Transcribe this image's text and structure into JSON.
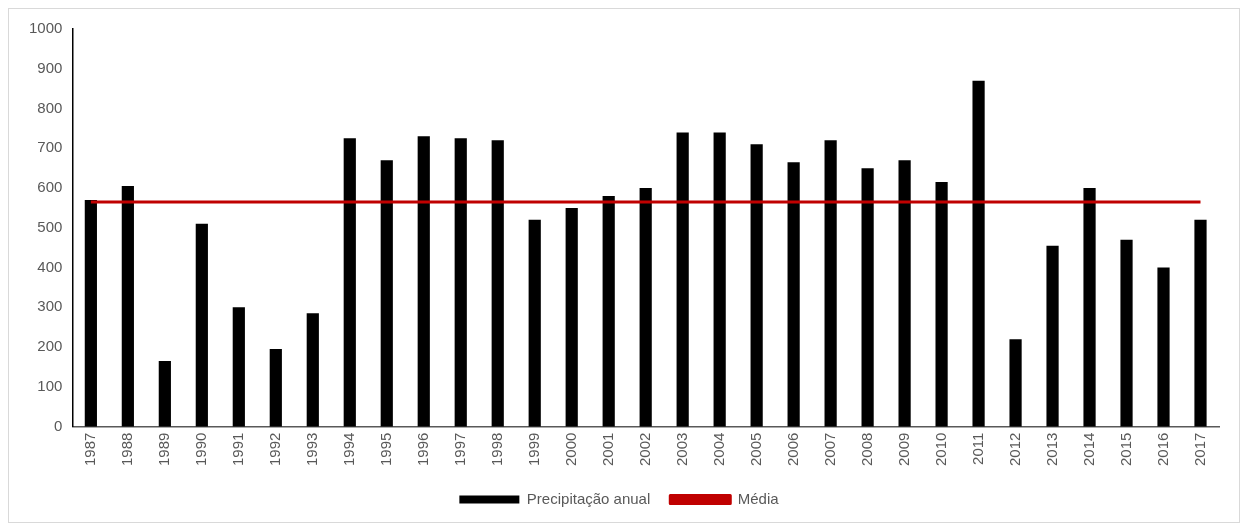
{
  "chart_data": {
    "type": "bar",
    "categories": [
      "1987",
      "1988",
      "1989",
      "1990",
      "1991",
      "1992",
      "1993",
      "1994",
      "1995",
      "1996",
      "1997",
      "1998",
      "1999",
      "2000",
      "2001",
      "2002",
      "2003",
      "2004",
      "2005",
      "2006",
      "2007",
      "2008",
      "2009",
      "2010",
      "2011",
      "2012",
      "2013",
      "2014",
      "2015",
      "2016",
      "2017"
    ],
    "series": [
      {
        "name": "Precipitação anual",
        "color": "#000000",
        "values": [
          570,
          605,
          165,
          510,
          300,
          195,
          285,
          725,
          670,
          730,
          725,
          720,
          520,
          550,
          580,
          600,
          740,
          740,
          710,
          665,
          720,
          650,
          670,
          615,
          870,
          220,
          455,
          600,
          470,
          400,
          520
        ]
      },
      {
        "name": "Média",
        "type": "line",
        "color": "#c00000",
        "values": [
          565,
          565,
          565,
          565,
          565,
          565,
          565,
          565,
          565,
          565,
          565,
          565,
          565,
          565,
          565,
          565,
          565,
          565,
          565,
          565,
          565,
          565,
          565,
          565,
          565,
          565,
          565,
          565,
          565,
          565,
          565
        ]
      }
    ],
    "ylim": [
      0,
      1000
    ],
    "yticks": [
      0,
      100,
      200,
      300,
      400,
      500,
      600,
      700,
      800,
      900,
      1000
    ],
    "grid": false,
    "legend": "bottom",
    "marker": "none"
  }
}
